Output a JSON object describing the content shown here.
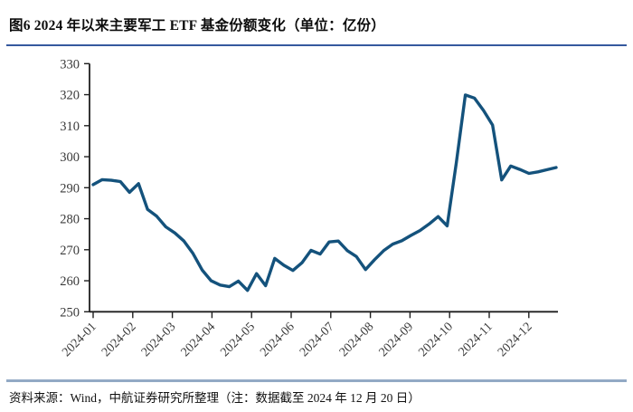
{
  "header": {
    "title": "图6  2024 年以来主要军工 ETF 基金份额变化（单位：亿份）"
  },
  "footer": {
    "source": "资料来源：Wind，中航证券研究所整理（注：数据截至 2024 年 12 月 20 日）"
  },
  "colors": {
    "line": "#14527c",
    "title_rule": "#35599e",
    "footer_rule": "#92a9c5",
    "axis": "#1f1f1f",
    "tick_label": "#3a3a3a"
  },
  "chart_data": {
    "type": "line",
    "title": "2024 年以来主要军工 ETF 基金份额变化",
    "unit": "亿份",
    "frequency": "weekly",
    "grid": false,
    "legend_position": "none",
    "ylim": [
      250,
      330
    ],
    "y_ticks": [
      250,
      260,
      270,
      280,
      290,
      300,
      310,
      320,
      330
    ],
    "x_tick_labels": [
      "2024-01",
      "2024-02",
      "2024-03",
      "2024-04",
      "2024-05",
      "2024-06",
      "2024-07",
      "2024-08",
      "2024-09",
      "2024-10",
      "2024-11",
      "2024-12"
    ],
    "series": [
      {
        "name": "主要军工 ETF 基金份额（亿份）",
        "values": [
          291.0,
          292.6,
          292.4,
          292.0,
          288.5,
          291.3,
          283.0,
          280.8,
          277.4,
          275.4,
          272.8,
          268.8,
          263.5,
          260.0,
          258.6,
          258.1,
          259.9,
          256.9,
          262.3,
          258.4,
          267.2,
          265.0,
          263.3,
          265.8,
          269.8,
          268.6,
          272.5,
          272.8,
          269.7,
          267.8,
          263.6,
          266.8,
          269.7,
          271.8,
          272.9,
          274.6,
          276.2,
          278.3,
          280.7,
          277.7,
          298.0,
          319.9,
          318.9,
          314.9,
          310.2,
          292.5,
          297.0,
          295.9,
          294.6,
          295.1,
          295.8,
          296.5
        ]
      }
    ]
  }
}
